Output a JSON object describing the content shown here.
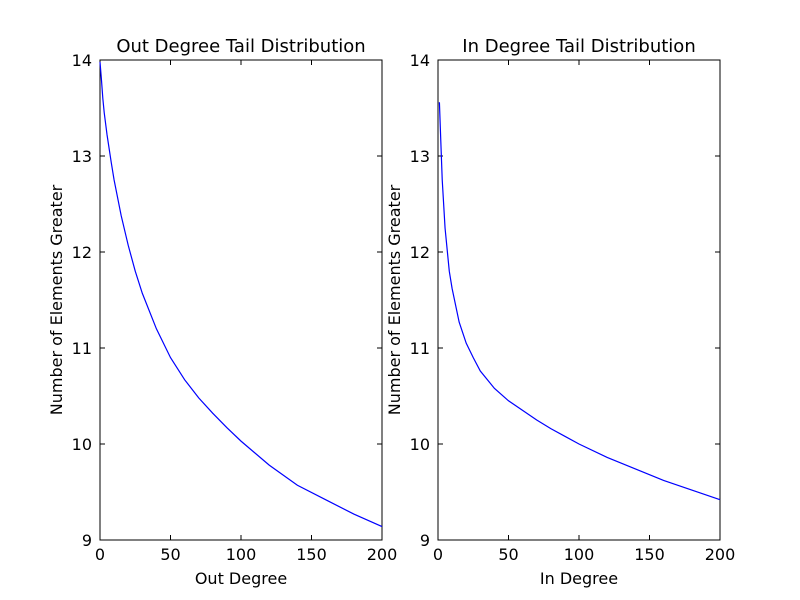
{
  "chart_data": [
    {
      "type": "line",
      "title": "Out Degree Tail Distribution",
      "xlabel": "Out Degree",
      "ylabel": "Number of Elements Greater",
      "xlim": [
        0,
        200
      ],
      "ylim": [
        9,
        14
      ],
      "xticks": [
        "0",
        "50",
        "100",
        "150",
        "200"
      ],
      "yticks": [
        "9",
        "10",
        "11",
        "12",
        "13",
        "14"
      ],
      "grid": false,
      "series": [
        {
          "color": "#0000ff",
          "x": [
            0,
            1,
            2,
            3,
            5,
            8,
            10,
            15,
            20,
            25,
            30,
            40,
            50,
            60,
            70,
            80,
            90,
            100,
            120,
            140,
            160,
            180,
            200
          ],
          "y": [
            13.98,
            13.8,
            13.6,
            13.45,
            13.22,
            12.93,
            12.75,
            12.38,
            12.07,
            11.8,
            11.57,
            11.2,
            10.9,
            10.67,
            10.48,
            10.32,
            10.17,
            10.03,
            9.78,
            9.57,
            9.42,
            9.27,
            9.14
          ]
        }
      ]
    },
    {
      "type": "line",
      "title": "In Degree Tail Distribution",
      "xlabel": "In Degree",
      "ylabel": "Number of Elements Greater",
      "xlim": [
        0,
        200
      ],
      "ylim": [
        9,
        14
      ],
      "xticks": [
        "0",
        "50",
        "100",
        "150",
        "200"
      ],
      "yticks": [
        "9",
        "10",
        "11",
        "12",
        "13",
        "14"
      ],
      "grid": false,
      "series": [
        {
          "color": "#0000ff",
          "x": [
            1,
            2,
            3,
            5,
            8,
            10,
            15,
            20,
            25,
            30,
            40,
            50,
            60,
            70,
            80,
            90,
            100,
            120,
            140,
            160,
            180,
            200
          ],
          "y": [
            13.56,
            13.15,
            12.75,
            12.25,
            11.8,
            11.62,
            11.27,
            11.05,
            10.9,
            10.76,
            10.58,
            10.45,
            10.35,
            10.25,
            10.16,
            10.08,
            10.0,
            9.86,
            9.74,
            9.62,
            9.52,
            9.42
          ]
        }
      ]
    }
  ]
}
